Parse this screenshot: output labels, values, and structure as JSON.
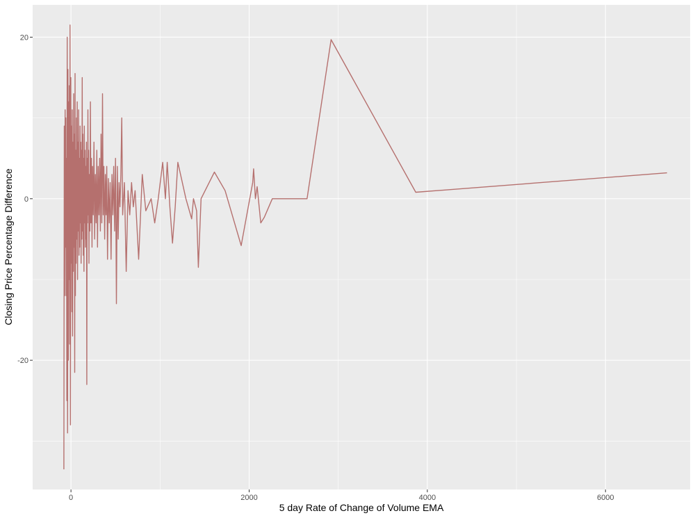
{
  "chart_data": {
    "type": "line",
    "title": "",
    "xlabel": "5 day Rate of Change of Volume EMA",
    "ylabel": "Closing Price Percentage Difference",
    "xlim": [
      -430,
      6950
    ],
    "ylim": [
      -36,
      24
    ],
    "x_ticks": [
      0,
      2000,
      4000,
      6000
    ],
    "x_tick_labels": [
      "0",
      "2000",
      "4000",
      "6000"
    ],
    "y_ticks": [
      -20,
      0,
      20
    ],
    "y_tick_labels": [
      "-20",
      "0",
      "20"
    ],
    "grid": true,
    "legend": "none",
    "colors": {
      "panel_background": "#ebebeb",
      "grid_major": "#ffffff",
      "line": "#b5706e",
      "tick_text": "#4d4d4d",
      "axis_title": "#000000"
    },
    "series": [
      {
        "values_note_type": "xy",
        "points": [
          [
            -80,
            -33.5
          ],
          [
            -75,
            9
          ],
          [
            -70,
            -12
          ],
          [
            -66,
            11
          ],
          [
            -62,
            -6
          ],
          [
            -58,
            10
          ],
          [
            -54,
            -12
          ],
          [
            -50,
            5
          ],
          [
            -46,
            -25
          ],
          [
            -42,
            20
          ],
          [
            -38,
            -29
          ],
          [
            -34,
            16
          ],
          [
            -30,
            -20
          ],
          [
            -26,
            12
          ],
          [
            -22,
            -10
          ],
          [
            -18,
            14
          ],
          [
            -14,
            -18
          ],
          [
            -10,
            21.5
          ],
          [
            -6,
            -28
          ],
          [
            -2,
            15
          ],
          [
            2,
            -8
          ],
          [
            6,
            9
          ],
          [
            10,
            -14
          ],
          [
            14,
            11
          ],
          [
            18,
            -17
          ],
          [
            22,
            7
          ],
          [
            26,
            -9
          ],
          [
            30,
            13
          ],
          [
            34,
            -6
          ],
          [
            38,
            8
          ],
          [
            42,
            -21.5
          ],
          [
            46,
            15.5
          ],
          [
            50,
            -12
          ],
          [
            54,
            6
          ],
          [
            58,
            -8
          ],
          [
            62,
            10
          ],
          [
            66,
            -5
          ],
          [
            70,
            12
          ],
          [
            74,
            -10
          ],
          [
            78,
            7
          ],
          [
            82,
            -4
          ],
          [
            86,
            11
          ],
          [
            90,
            -7
          ],
          [
            94,
            5
          ],
          [
            98,
            -6
          ],
          [
            102,
            9
          ],
          [
            106,
            -3
          ],
          [
            110,
            7
          ],
          [
            114,
            -8
          ],
          [
            118,
            6
          ],
          [
            122,
            -5
          ],
          [
            126,
            15
          ],
          [
            130,
            -4
          ],
          [
            134,
            8
          ],
          [
            138,
            -7
          ],
          [
            142,
            5
          ],
          [
            146,
            -9
          ],
          [
            150,
            9
          ],
          [
            154,
            -3
          ],
          [
            158,
            6
          ],
          [
            162,
            -6
          ],
          [
            166,
            4
          ],
          [
            170,
            -5
          ],
          [
            174,
            7
          ],
          [
            178,
            -23
          ],
          [
            182,
            5
          ],
          [
            186,
            -3
          ],
          [
            190,
            11
          ],
          [
            194,
            -2
          ],
          [
            198,
            6
          ],
          [
            202,
            -8
          ],
          [
            206,
            3
          ],
          [
            212,
            -4
          ],
          [
            218,
            12
          ],
          [
            224,
            -3
          ],
          [
            230,
            5
          ],
          [
            236,
            -6
          ],
          [
            242,
            4
          ],
          [
            250,
            -2
          ],
          [
            258,
            7
          ],
          [
            266,
            -5
          ],
          [
            274,
            3
          ],
          [
            282,
            -3
          ],
          [
            290,
            6
          ],
          [
            298,
            -6
          ],
          [
            306,
            4
          ],
          [
            314,
            -2
          ],
          [
            322,
            5
          ],
          [
            330,
            -4
          ],
          [
            338,
            8
          ],
          [
            346,
            -3
          ],
          [
            354,
            13
          ],
          [
            362,
            -2
          ],
          [
            370,
            4
          ],
          [
            378,
            -5
          ],
          [
            386,
            3
          ],
          [
            394,
            -2
          ],
          [
            402,
            4
          ],
          [
            410,
            -7.5
          ],
          [
            420,
            2.5
          ],
          [
            430,
            -3
          ],
          [
            440,
            2
          ],
          [
            450,
            -7.5
          ],
          [
            460,
            3
          ],
          [
            470,
            -2
          ],
          [
            480,
            4
          ],
          [
            490,
            -4
          ],
          [
            500,
            5
          ],
          [
            510,
            -13
          ],
          [
            520,
            4
          ],
          [
            530,
            -5
          ],
          [
            540,
            2
          ],
          [
            550,
            -1
          ],
          [
            560,
            3
          ],
          [
            570,
            10
          ],
          [
            580,
            -2
          ],
          [
            600,
            2
          ],
          [
            620,
            -9
          ],
          [
            640,
            1
          ],
          [
            660,
            -2
          ],
          [
            680,
            2
          ],
          [
            700,
            -1
          ],
          [
            720,
            1
          ],
          [
            760,
            -7.5
          ],
          [
            800,
            3
          ],
          [
            840,
            -1.5
          ],
          [
            900,
            0
          ],
          [
            940,
            -3
          ],
          [
            980,
            0
          ],
          [
            1030,
            4.5
          ],
          [
            1060,
            0
          ],
          [
            1080,
            4.5
          ],
          [
            1110,
            -1
          ],
          [
            1140,
            -5.5
          ],
          [
            1170,
            -1
          ],
          [
            1200,
            4.5
          ],
          [
            1290,
            0
          ],
          [
            1355,
            -2.5
          ],
          [
            1375,
            0
          ],
          [
            1410,
            -1.5
          ],
          [
            1430,
            -8.5
          ],
          [
            1460,
            0
          ],
          [
            1610,
            3.3
          ],
          [
            1730,
            1
          ],
          [
            1910,
            -5.8
          ],
          [
            2040,
            2
          ],
          [
            2050,
            3.7
          ],
          [
            2070,
            0
          ],
          [
            2090,
            1.5
          ],
          [
            2130,
            -3
          ],
          [
            2170,
            -2.3
          ],
          [
            2260,
            0
          ],
          [
            2650,
            0
          ],
          [
            2920,
            19.7
          ],
          [
            3870,
            0.8
          ],
          [
            6690,
            3.2
          ]
        ]
      }
    ]
  }
}
